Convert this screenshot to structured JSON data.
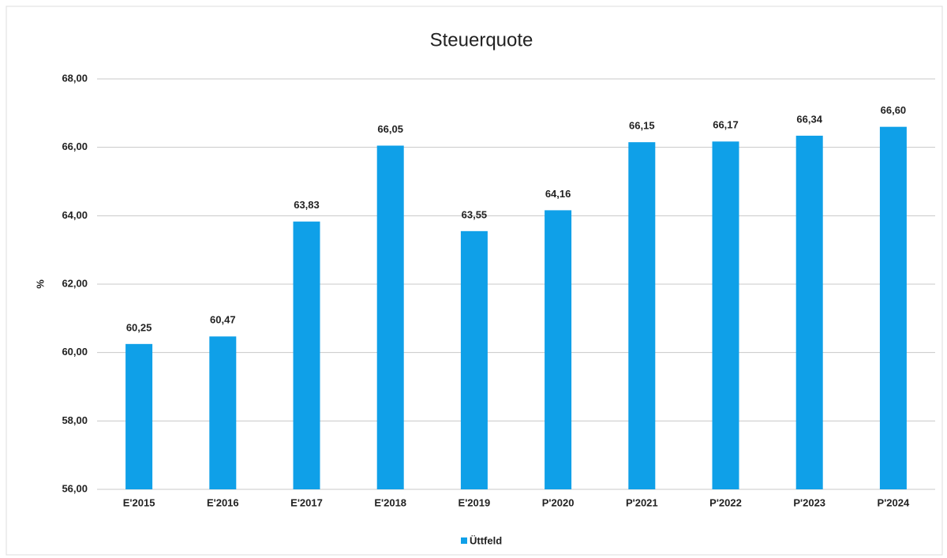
{
  "chart_data": {
    "type": "bar",
    "title": "Steuerquote",
    "y_label": "%",
    "categories": [
      "E'2015",
      "E'2016",
      "E'2017",
      "E'2018",
      "E'2019",
      "P'2020",
      "P'2021",
      "P'2022",
      "P'2023",
      "P'2024"
    ],
    "series": [
      {
        "name": "Üttfeld",
        "color": "#0fa0e8",
        "values": [
          60.25,
          60.47,
          63.83,
          66.05,
          63.55,
          64.16,
          66.15,
          66.17,
          66.34,
          66.6
        ],
        "value_labels": [
          "60,25",
          "60,47",
          "63,83",
          "66,05",
          "63,55",
          "64,16",
          "66,15",
          "66,17",
          "66,34",
          "66,60"
        ]
      }
    ],
    "ylim": [
      56,
      68
    ],
    "yticks": [
      {
        "value": 56,
        "label": "56,00"
      },
      {
        "value": 58,
        "label": "58,00"
      },
      {
        "value": 60,
        "label": "60,00"
      },
      {
        "value": 62,
        "label": "62,00"
      },
      {
        "value": 64,
        "label": "64,00"
      },
      {
        "value": 66,
        "label": "66,00"
      },
      {
        "value": 68,
        "label": "68,00"
      }
    ],
    "grid": true,
    "legend": "bottom"
  }
}
